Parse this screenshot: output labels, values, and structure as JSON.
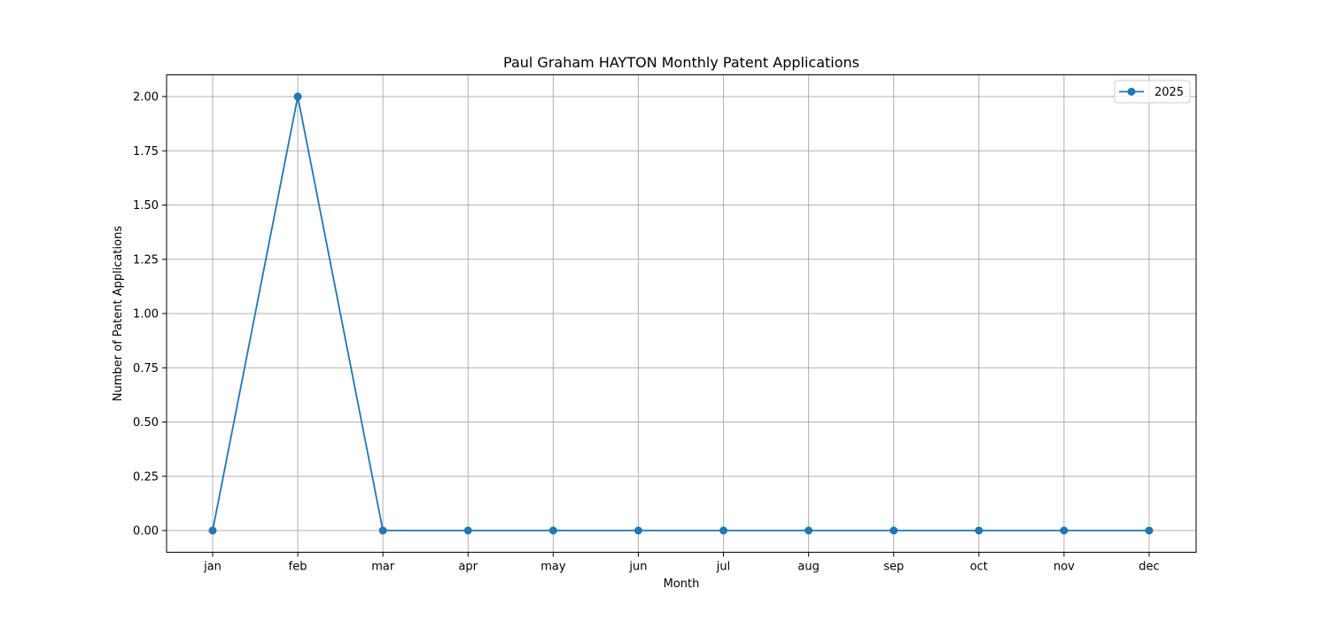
{
  "chart_data": {
    "type": "line",
    "title": "Paul Graham HAYTON Monthly Patent Applications",
    "xlabel": "Month",
    "ylabel": "Number of Patent Applications",
    "categories": [
      "jan",
      "feb",
      "mar",
      "apr",
      "may",
      "jun",
      "jul",
      "aug",
      "sep",
      "oct",
      "nov",
      "dec"
    ],
    "series": [
      {
        "name": "2025",
        "values": [
          0,
          2,
          0,
          0,
          0,
          0,
          0,
          0,
          0,
          0,
          0,
          0
        ],
        "color": "#1f77b4",
        "marker": "circle"
      }
    ],
    "ylim": [
      -0.1,
      2.1
    ],
    "yticks": [
      0.0,
      0.25,
      0.5,
      0.75,
      1.0,
      1.25,
      1.5,
      1.75,
      2.0
    ],
    "ytick_labels": [
      "0.00",
      "0.25",
      "0.50",
      "0.75",
      "1.00",
      "1.25",
      "1.50",
      "1.75",
      "2.00"
    ],
    "grid": true,
    "legend": {
      "placement": "top-right"
    }
  }
}
